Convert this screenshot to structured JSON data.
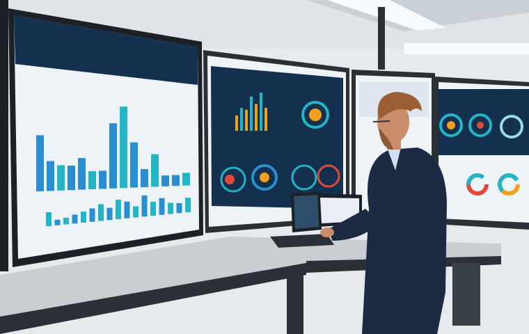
{
  "colors": {
    "wall": "#e6eaed",
    "ceiling_light": "#f7fbff",
    "screen_dark": "#14304f",
    "screen_light": "#eef3f7",
    "bar_blue": "#2a8fd0",
    "bar_teal": "#23b5c4",
    "accent_orange": "#f0a020",
    "accent_red": "#e04a3a",
    "desk": "#c9ced3",
    "desk_edge": "#2b3036",
    "suit": "#1d2a44",
    "skin": "#c98c68",
    "hair": "#9a5f34"
  },
  "left_screen": {
    "upper_bars": [
      0.62,
      0.33,
      0.28,
      0.27,
      0.35,
      0.2,
      0.2,
      0.72,
      0.9,
      0.5,
      0.2,
      0.36,
      0.12,
      0.12,
      0.14
    ],
    "lower_bars": [
      0.25,
      0.1,
      0.12,
      0.16,
      0.2,
      0.24,
      0.3,
      0.22,
      0.35,
      0.3,
      0.2,
      0.38,
      0.25,
      0.3,
      0.2,
      0.18,
      0.26
    ]
  },
  "middle_screen": {
    "bars": [
      0.4,
      0.6,
      0.55,
      0.9,
      0.7,
      1.0,
      0.6
    ]
  },
  "icons": [
    "gauge-icon",
    "donut-chart-icon",
    "laptop-icon",
    "tablet-icon"
  ]
}
